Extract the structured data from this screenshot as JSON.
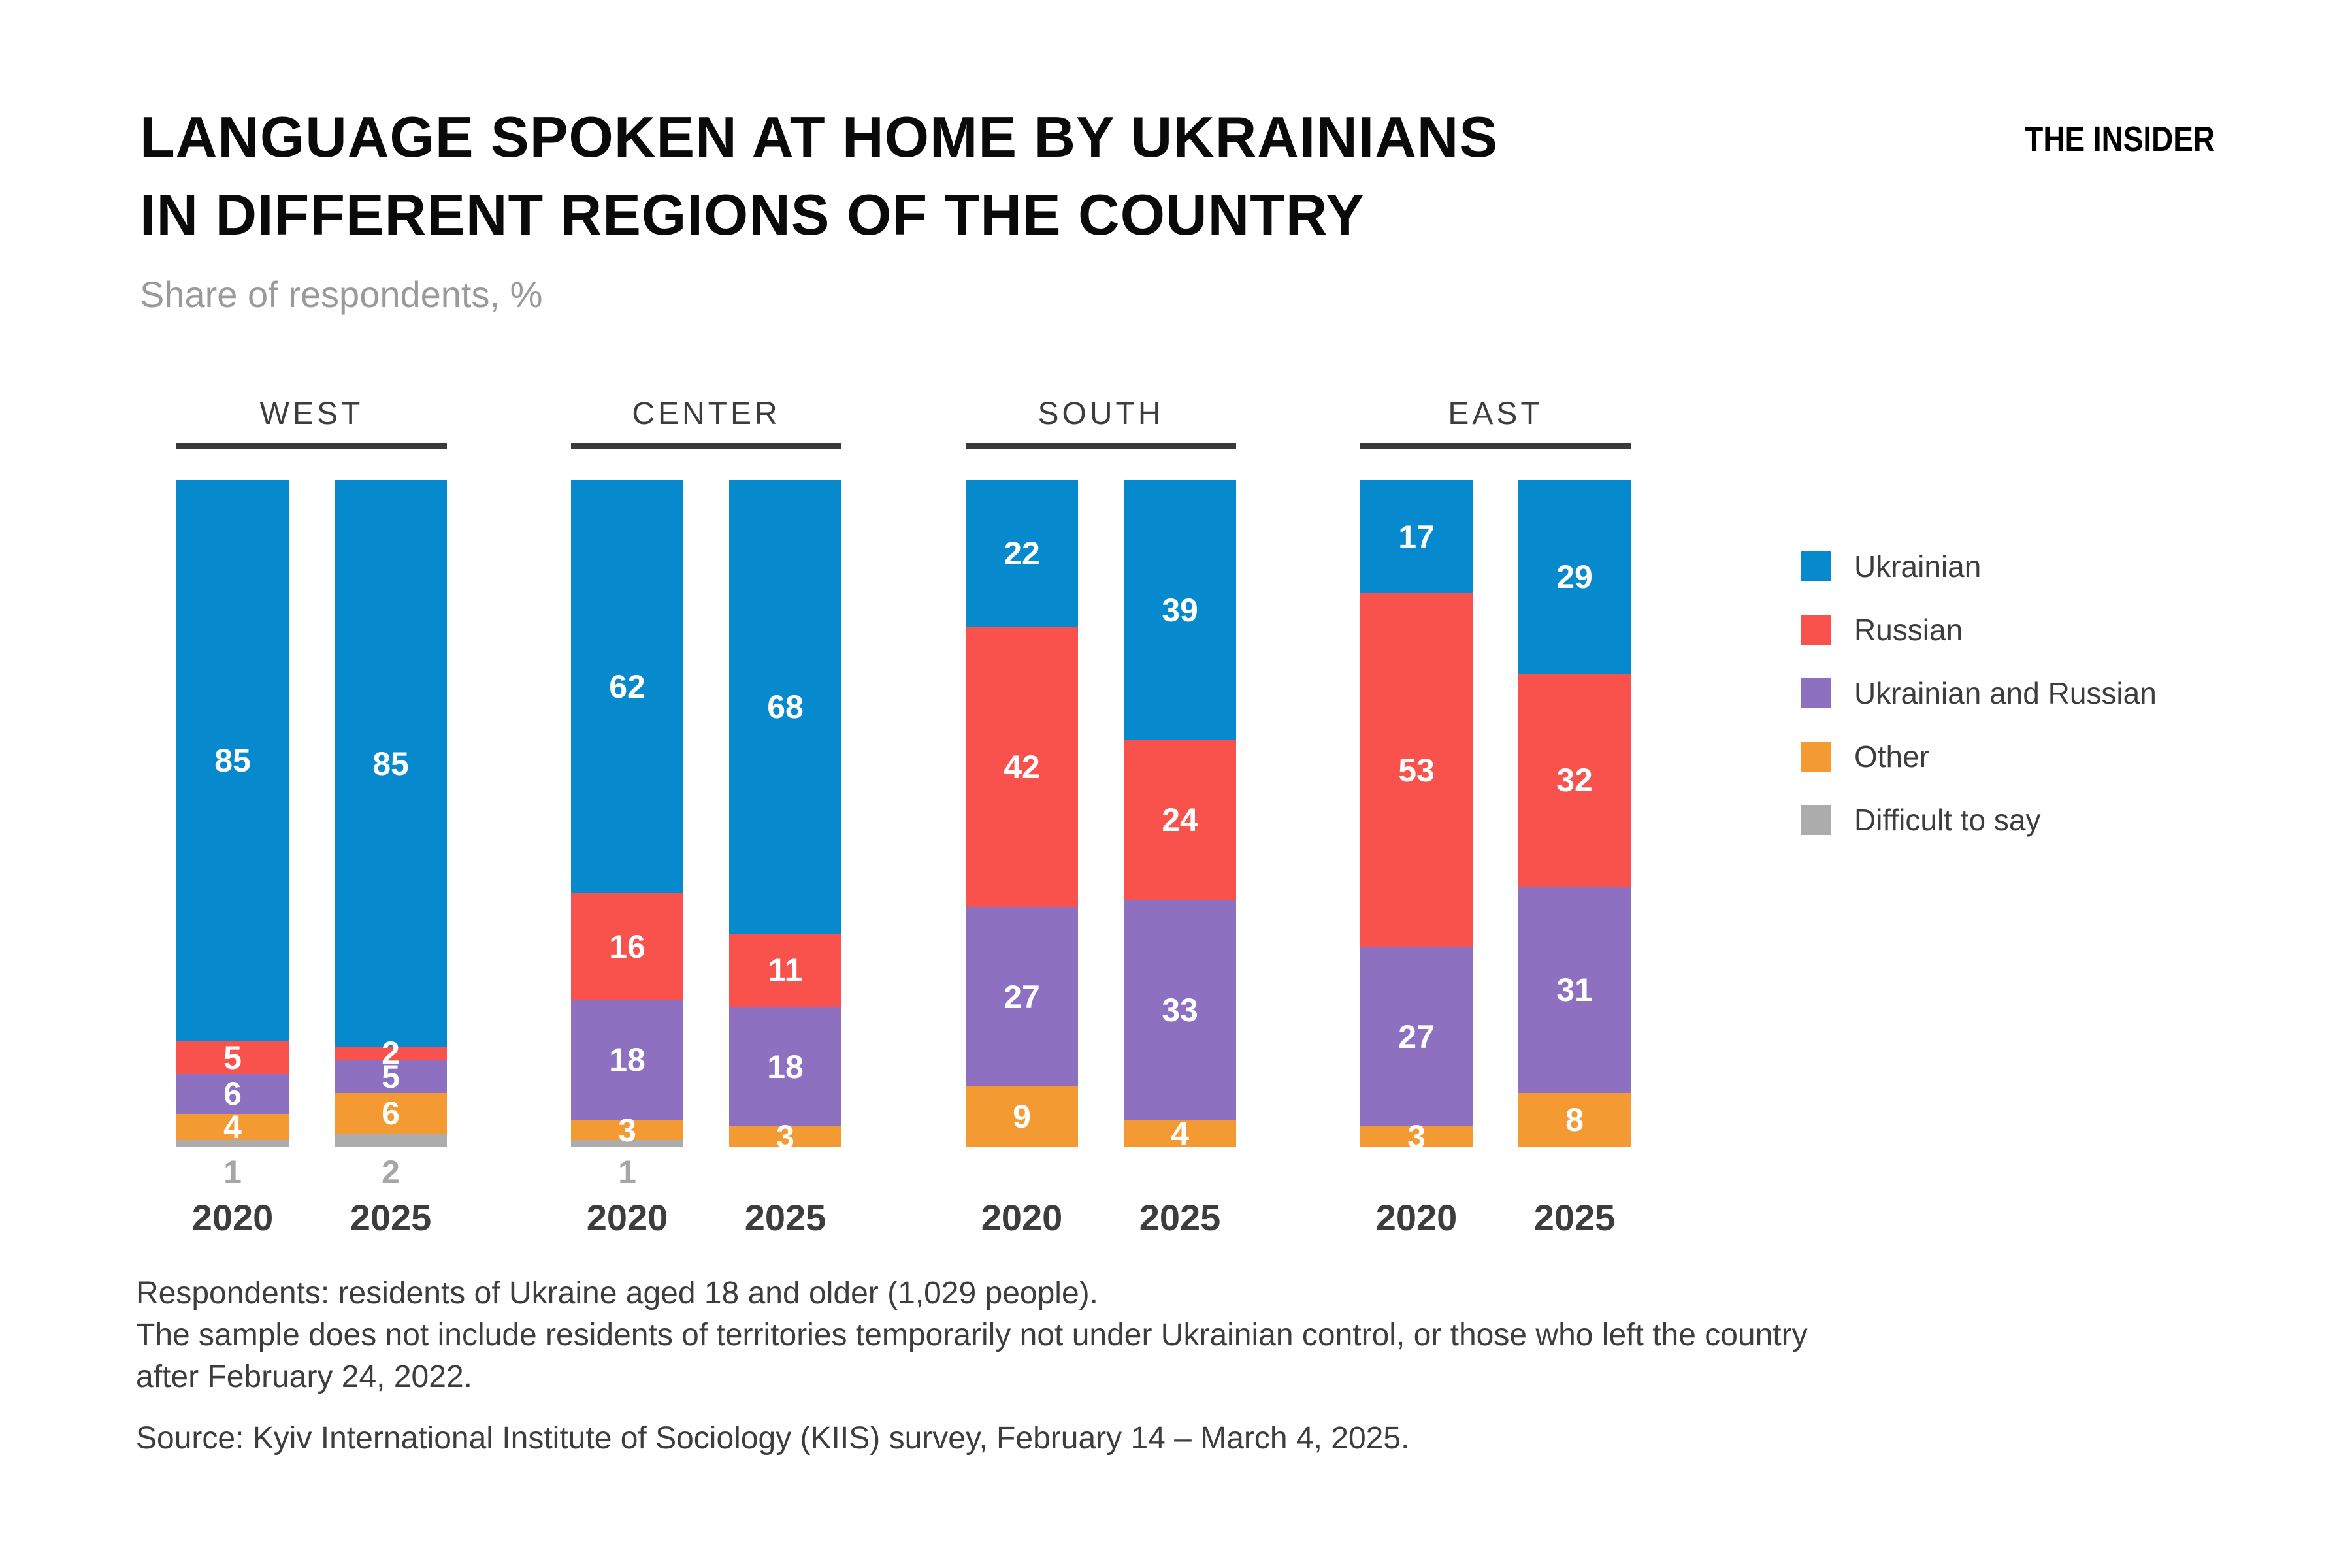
{
  "header": {
    "title_line1": "LANGUAGE SPOKEN AT HOME BY UKRAINIANS",
    "title_line2": "IN DIFFERENT REGIONS OF THE COUNTRY",
    "subtitle": "Share of respondents, %",
    "logo": "THE INSIDER"
  },
  "legend": {
    "items": [
      {
        "label": "Ukrainian",
        "color_key": "Ukrainian"
      },
      {
        "label": "Russian",
        "color_key": "Russian"
      },
      {
        "label": "Ukrainian and Russian",
        "color_key": "Ukrainian and Russian"
      },
      {
        "label": "Other",
        "color_key": "Other"
      },
      {
        "label": "Difficult to say",
        "color_key": "Difficult to say"
      }
    ]
  },
  "chart_data": {
    "type": "bar",
    "variant": "stacked-100-percent",
    "unit": "percent of respondents",
    "categories_note": "four regions, each with bars for 2020 and 2025",
    "series_order": [
      "Ukrainian",
      "Russian",
      "Ukrainian and Russian",
      "Other",
      "Difficult to say"
    ],
    "colors": {
      "Ukrainian": "#0789cd",
      "Russian": "#f9514c",
      "Ukrainian and Russian": "#8e70c1",
      "Other": "#f49a32",
      "Difficult to say": "#acacac"
    },
    "groups": [
      {
        "region": "WEST",
        "bars": [
          {
            "year": "2020",
            "values": {
              "Ukrainian": 85,
              "Russian": 5,
              "Ukrainian and Russian": 6,
              "Other": 4,
              "Difficult to say": 1
            }
          },
          {
            "year": "2025",
            "values": {
              "Ukrainian": 85,
              "Russian": 2,
              "Ukrainian and Russian": 5,
              "Other": 6,
              "Difficult to say": 2
            }
          }
        ]
      },
      {
        "region": "CENTER",
        "bars": [
          {
            "year": "2020",
            "values": {
              "Ukrainian": 62,
              "Russian": 16,
              "Ukrainian and Russian": 18,
              "Other": 3,
              "Difficult to say": 1
            }
          },
          {
            "year": "2025",
            "values": {
              "Ukrainian": 68,
              "Russian": 11,
              "Ukrainian and Russian": 18,
              "Other": 3
            }
          }
        ]
      },
      {
        "region": "SOUTH",
        "bars": [
          {
            "year": "2020",
            "values": {
              "Ukrainian": 22,
              "Russian": 42,
              "Ukrainian and Russian": 27,
              "Other": 9
            }
          },
          {
            "year": "2025",
            "values": {
              "Ukrainian": 39,
              "Russian": 24,
              "Ukrainian and Russian": 33,
              "Other": 4
            }
          }
        ]
      },
      {
        "region": "EAST",
        "bars": [
          {
            "year": "2020",
            "values": {
              "Ukrainian": 17,
              "Russian": 53,
              "Ukrainian and Russian": 27,
              "Other": 3
            }
          },
          {
            "year": "2025",
            "values": {
              "Ukrainian": 29,
              "Russian": 32,
              "Ukrainian and Russian": 31,
              "Other": 8
            }
          }
        ]
      }
    ]
  },
  "notes": {
    "lines": [
      "Respondents: residents of Ukraine aged 18 and older (1,029 people).",
      "The sample does not include residents of territories temporarily not under Ukrainian control, or those who left the country",
      "after February 24, 2022."
    ],
    "source": "Source: Kyiv International Institute of Sociology (KIIS) survey, February 14 – March 4, 2025."
  }
}
